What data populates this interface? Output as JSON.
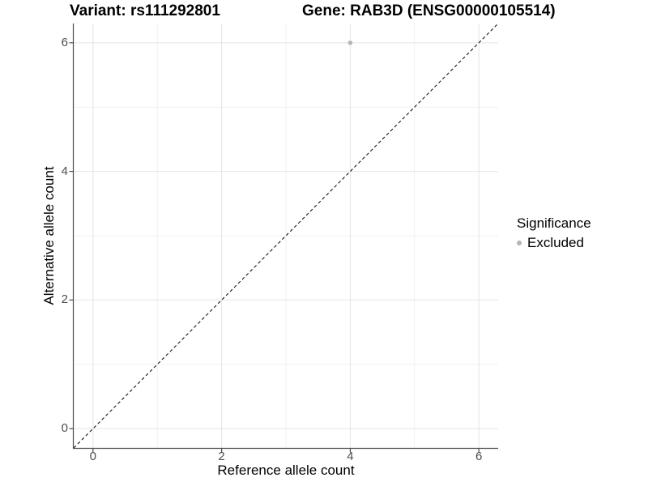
{
  "chart_data": {
    "type": "scatter",
    "title_left": "Variant: rs111292801",
    "title_right": "Gene: RAB3D (ENSG00000105514)",
    "xlabel": "Reference allele count",
    "ylabel": "Alternative allele count",
    "xlim": [
      -0.3,
      6.3
    ],
    "ylim": [
      -0.3,
      6.3
    ],
    "x_major_ticks": [
      0,
      2,
      4,
      6
    ],
    "x_minor_ticks": [
      1,
      3,
      5
    ],
    "y_major_ticks": [
      0,
      2,
      4,
      6
    ],
    "y_minor_ticks": [
      1,
      3,
      5
    ],
    "grid": true,
    "abline": {
      "slope": 1,
      "intercept": 0,
      "style": "dashed",
      "color": "#000000"
    },
    "series": [
      {
        "name": "Excluded",
        "color": "#b5b5b5",
        "points": [
          {
            "x": 4,
            "y": 6
          }
        ]
      }
    ],
    "legend": {
      "title": "Significance",
      "position": "right",
      "entries": [
        {
          "label": "Excluded",
          "color": "#b5b5b5",
          "marker": "dot-icon"
        }
      ]
    },
    "colors": {
      "background": "#ffffff",
      "grid_major": "#e4e4e4",
      "grid_minor": "#f1f1f1",
      "axis_line": "#4a4a4a",
      "tick_mark": "#4a4a4a",
      "tick_label": "#4d4d4d",
      "text": "#000000"
    }
  }
}
